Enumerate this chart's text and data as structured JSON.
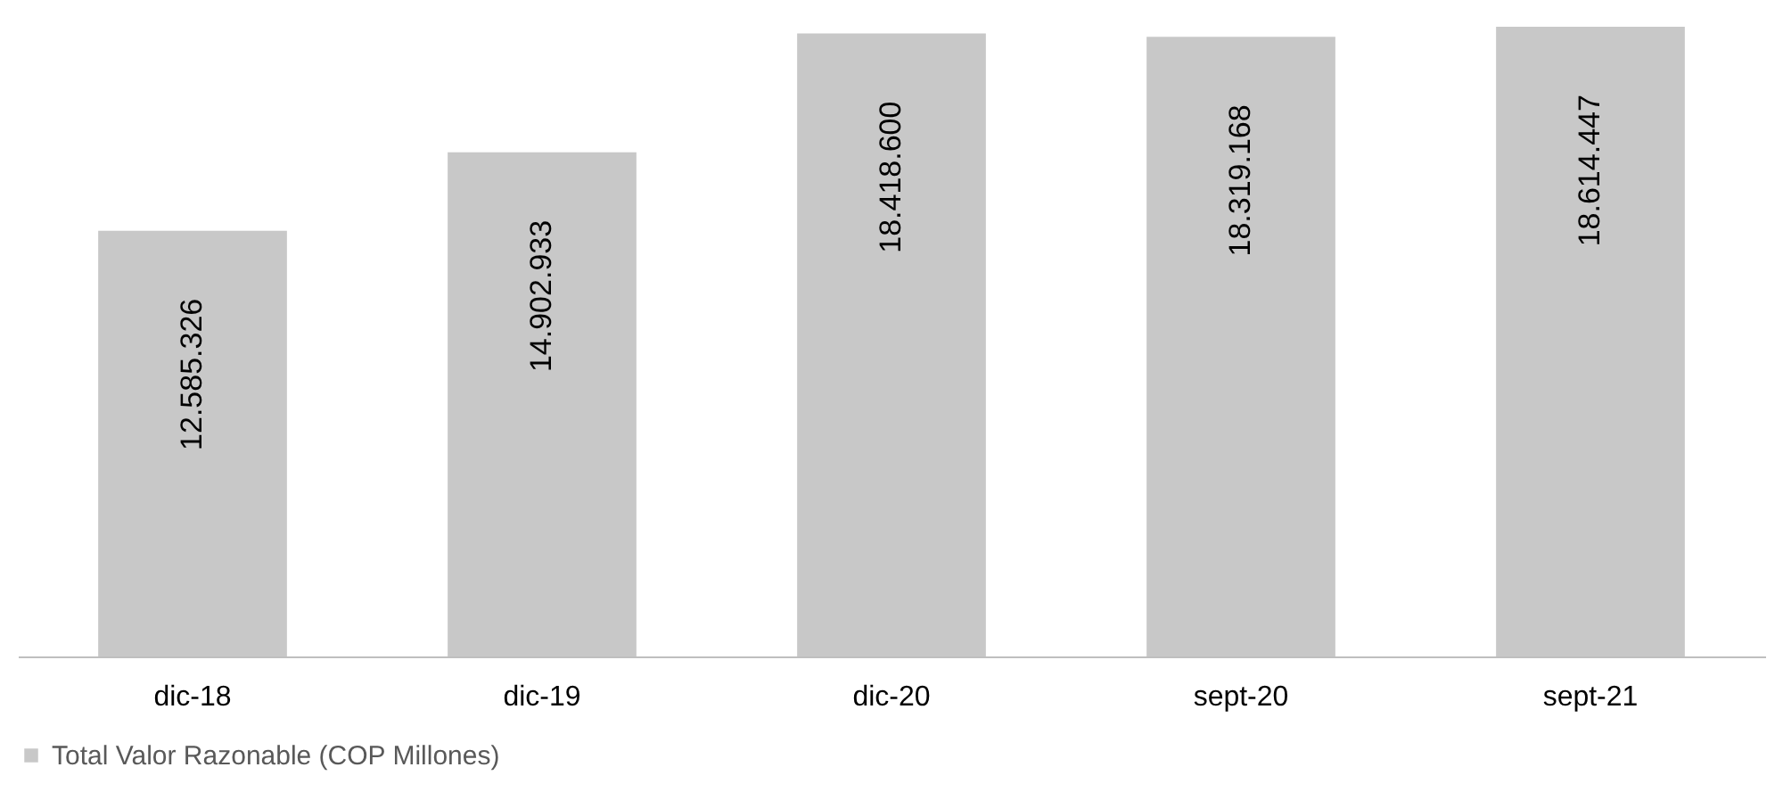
{
  "chart_data": {
    "type": "bar",
    "categories": [
      "dic-18",
      "dic-19",
      "dic-20",
      "sept-20",
      "sept-21"
    ],
    "series": [
      {
        "name": "Total Valor Razonable (COP Millones)",
        "color": "#c8c8c8",
        "values": [
          12585326,
          14902933,
          18418600,
          18319168,
          18614447
        ],
        "value_labels": [
          "12.585.326",
          "14.902.933",
          "18.418.600",
          "18.319.168",
          "18.614.447"
        ]
      }
    ],
    "legend": "bottom",
    "grid": false
  }
}
